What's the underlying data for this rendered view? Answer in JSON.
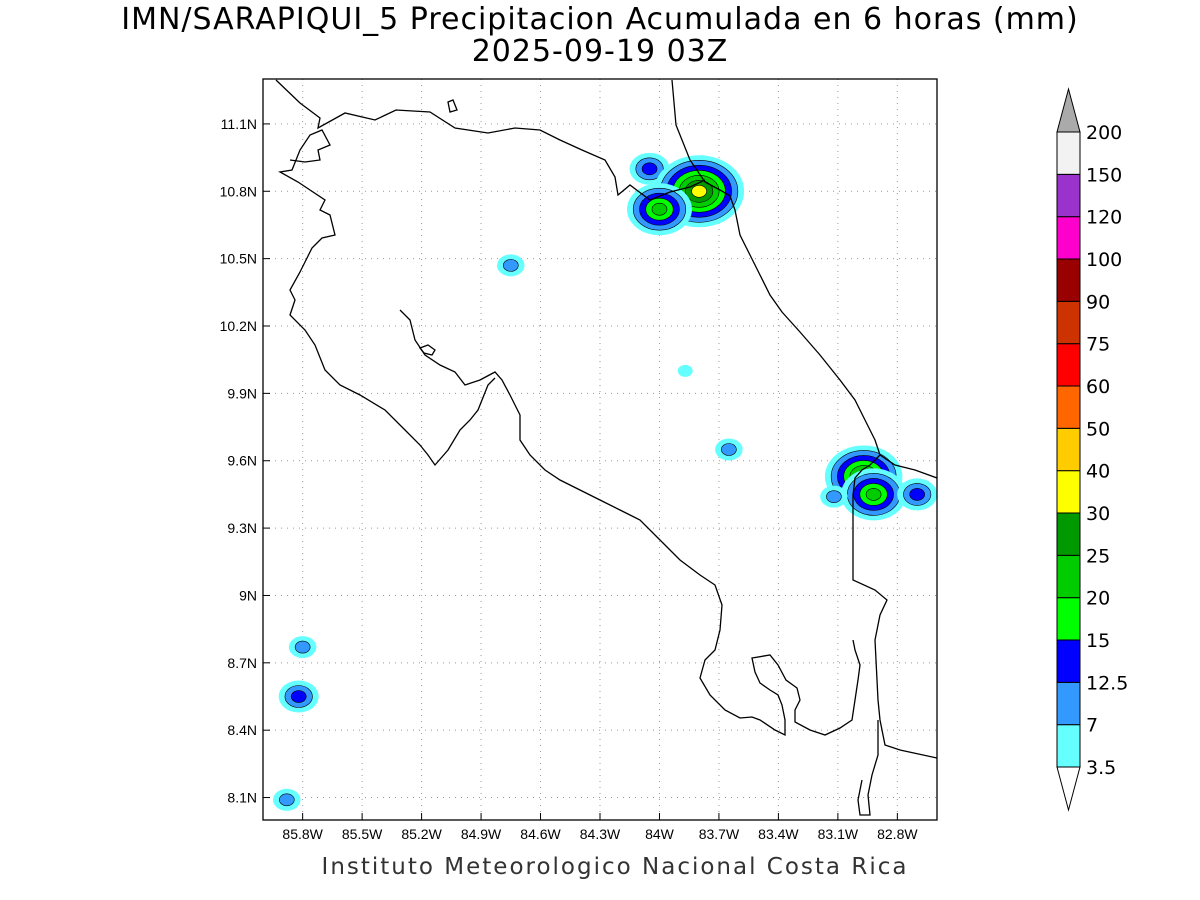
{
  "title": {
    "line1": "IMN/SARAPIQUI_5 Precipitacion Acumulada en 6 horas (mm)",
    "line2": "2025-09-19 03Z"
  },
  "footer": "Instituto Meteorologico Nacional Costa Rica",
  "map": {
    "lon_range": [
      -86.0,
      -82.6
    ],
    "lat_range": [
      8.0,
      11.3
    ],
    "x_ticks": [
      "85.8W",
      "85.5W",
      "85.2W",
      "84.9W",
      "84.6W",
      "84.3W",
      "84W",
      "83.7W",
      "83.4W",
      "83.1W",
      "82.8W"
    ],
    "y_ticks": [
      "11.1N",
      "10.8N",
      "10.5N",
      "10.2N",
      "9.9N",
      "9.6N",
      "9.3N",
      "9N",
      "8.7N",
      "8.4N",
      "8.1N"
    ],
    "grid": true,
    "coastline_color": "#000000"
  },
  "colorbar": {
    "levels": [
      "3.5",
      "7",
      "12.5",
      "15",
      "20",
      "25",
      "30",
      "40",
      "50",
      "60",
      "75",
      "90",
      "100",
      "120",
      "150",
      "200"
    ],
    "colors": [
      "#66ffff",
      "#3399ff",
      "#0000ff",
      "#00ff00",
      "#00cc00",
      "#009900",
      "#ffff00",
      "#ffcc00",
      "#ff6600",
      "#ff0000",
      "#cc3300",
      "#990000",
      "#ff00cc",
      "#9933cc",
      "#f2f2f2",
      "#aaaaaa"
    ],
    "units": "mm"
  },
  "precip_cells": [
    {
      "lon": -84.05,
      "lat": 10.9,
      "max_mm": 12.5
    },
    {
      "lon": -83.8,
      "lat": 10.8,
      "max_mm": 30
    },
    {
      "lon": -84.0,
      "lat": 10.72,
      "max_mm": 20
    },
    {
      "lon": -84.75,
      "lat": 10.47,
      "max_mm": 7
    },
    {
      "lon": -83.87,
      "lat": 10.0,
      "max_mm": 3.5
    },
    {
      "lon": -83.65,
      "lat": 9.65,
      "max_mm": 7
    },
    {
      "lon": -82.97,
      "lat": 9.53,
      "max_mm": 25
    },
    {
      "lon": -82.92,
      "lat": 9.45,
      "max_mm": 20
    },
    {
      "lon": -82.7,
      "lat": 9.45,
      "max_mm": 12.5
    },
    {
      "lon": -83.12,
      "lat": 9.44,
      "max_mm": 7
    },
    {
      "lon": -85.8,
      "lat": 8.77,
      "max_mm": 7
    },
    {
      "lon": -85.82,
      "lat": 8.55,
      "max_mm": 12.5
    },
    {
      "lon": -85.88,
      "lat": 8.09,
      "max_mm": 7
    }
  ]
}
